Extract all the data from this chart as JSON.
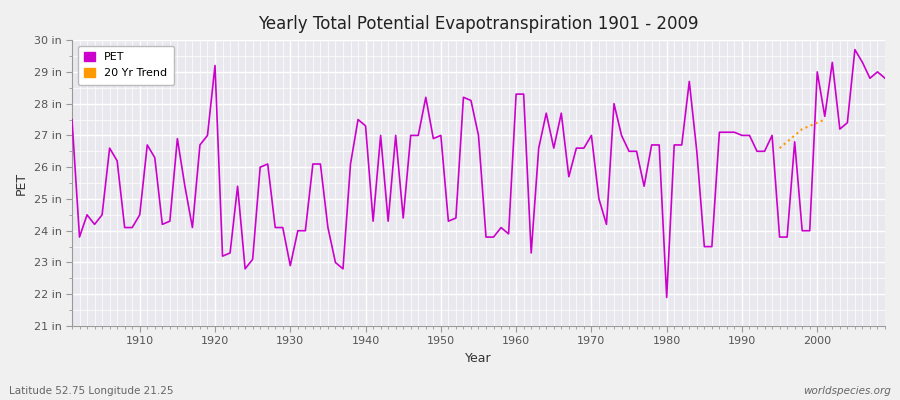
{
  "title": "Yearly Total Potential Evapotranspiration 1901 - 2009",
  "xlabel": "Year",
  "ylabel": "PET",
  "lat_lon_label": "Latitude 52.75 Longitude 21.25",
  "watermark": "worldspecies.org",
  "ylim": [
    21,
    30
  ],
  "yticks": [
    21,
    22,
    23,
    24,
    25,
    26,
    27,
    28,
    29,
    30
  ],
  "ytick_labels": [
    "21 in",
    "22 in",
    "23 in",
    "24 in",
    "25 in",
    "26 in",
    "27 in",
    "28 in",
    "29 in",
    "30 in"
  ],
  "xlim": [
    1901,
    2009
  ],
  "xticks": [
    1910,
    1920,
    1930,
    1940,
    1950,
    1960,
    1970,
    1980,
    1990,
    2000
  ],
  "fig_bg_color": "#f0f0f0",
  "plot_bg_color": "#e8e8ee",
  "grid_color": "#ffffff",
  "pet_color": "#cc00cc",
  "trend_color": "#ff9900",
  "legend_entries": [
    "PET",
    "20 Yr Trend"
  ],
  "years": [
    1901,
    1902,
    1903,
    1904,
    1905,
    1906,
    1907,
    1908,
    1909,
    1910,
    1911,
    1912,
    1913,
    1914,
    1915,
    1916,
    1917,
    1918,
    1919,
    1920,
    1921,
    1922,
    1923,
    1924,
    1925,
    1926,
    1927,
    1928,
    1929,
    1930,
    1931,
    1932,
    1933,
    1934,
    1935,
    1936,
    1937,
    1938,
    1939,
    1940,
    1941,
    1942,
    1943,
    1944,
    1945,
    1946,
    1947,
    1948,
    1949,
    1950,
    1951,
    1952,
    1953,
    1954,
    1955,
    1956,
    1957,
    1958,
    1959,
    1960,
    1961,
    1962,
    1963,
    1964,
    1965,
    1966,
    1967,
    1968,
    1969,
    1970,
    1971,
    1972,
    1973,
    1974,
    1975,
    1976,
    1977,
    1978,
    1979,
    1980,
    1981,
    1982,
    1983,
    1984,
    1985,
    1986,
    1987,
    1988,
    1989,
    1990,
    1991,
    1992,
    1993,
    1994,
    1995,
    1996,
    1997,
    1998,
    1999,
    2000,
    2001,
    2002,
    2003,
    2004,
    2005,
    2006,
    2007,
    2008,
    2009
  ],
  "pet_values": [
    27.5,
    23.8,
    24.5,
    24.2,
    24.5,
    26.6,
    26.2,
    24.1,
    24.1,
    24.5,
    26.7,
    26.3,
    24.2,
    24.3,
    26.9,
    25.4,
    24.1,
    26.7,
    27.0,
    29.2,
    23.2,
    23.3,
    25.4,
    22.8,
    23.1,
    26.0,
    26.1,
    24.1,
    24.1,
    22.9,
    24.0,
    24.0,
    26.1,
    26.1,
    24.1,
    23.0,
    22.8,
    26.1,
    27.5,
    27.3,
    24.3,
    27.0,
    24.3,
    27.0,
    24.4,
    27.0,
    27.0,
    28.2,
    26.9,
    27.0,
    24.3,
    24.4,
    28.2,
    28.1,
    27.0,
    23.8,
    23.8,
    24.1,
    23.9,
    28.3,
    28.3,
    23.3,
    26.6,
    27.7,
    26.6,
    27.7,
    25.7,
    26.6,
    26.6,
    27.0,
    25.0,
    24.2,
    28.0,
    27.0,
    26.5,
    26.5,
    25.4,
    26.7,
    26.7,
    21.9,
    26.7,
    26.7,
    28.7,
    26.5,
    23.5,
    23.5,
    27.1,
    27.1,
    27.1,
    27.0,
    27.0,
    26.5,
    26.5,
    27.0,
    23.8,
    23.8,
    26.8,
    24.0,
    24.0,
    29.0,
    27.6,
    29.3,
    27.2,
    27.4,
    29.7,
    29.3,
    28.8,
    29.0,
    28.8
  ],
  "trend_years": [
    1995,
    1996,
    1997,
    1998,
    1999,
    2000,
    2001
  ],
  "trend_values": [
    26.6,
    26.8,
    27.0,
    27.2,
    27.3,
    27.4,
    27.5
  ]
}
